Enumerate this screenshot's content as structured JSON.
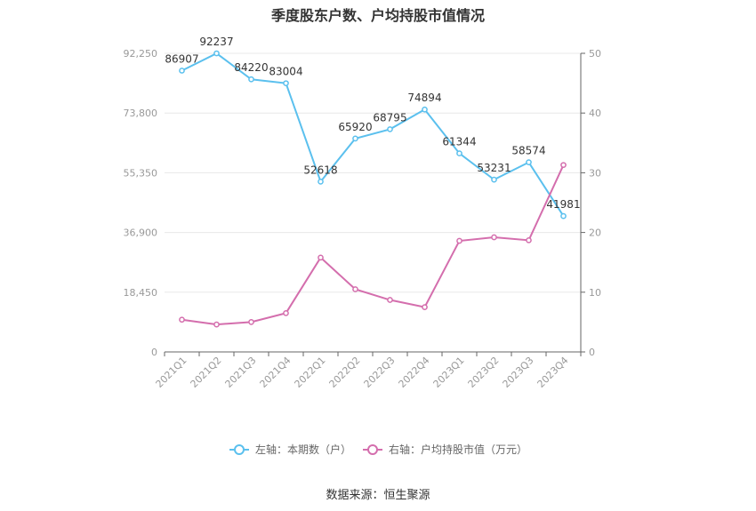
{
  "title": "季度股东户数、户均持股市值情况",
  "source": "数据来源：恒生聚源",
  "colors": {
    "left_series": "#5bc0ee",
    "right_series": "#d46ead",
    "grid": "#e8e8e8",
    "axis": "#666666",
    "tick_text": "#999999",
    "label_text": "#333333"
  },
  "chart_data": {
    "type": "line",
    "title": "季度股东户数、户均持股市值情况",
    "categories": [
      "2021Q1",
      "2021Q2",
      "2021Q3",
      "2021Q4",
      "2022Q1",
      "2022Q2",
      "2022Q3",
      "2022Q4",
      "2023Q1",
      "2023Q2",
      "2023Q3",
      "2023Q4"
    ],
    "left_axis": {
      "ticks": [
        "0",
        "18,450",
        "36,900",
        "55,350",
        "73,800",
        "92,250"
      ],
      "ylim": [
        0,
        92250
      ]
    },
    "right_axis": {
      "ticks": [
        "0",
        "10",
        "20",
        "30",
        "40",
        "50"
      ],
      "ylim": [
        0,
        50
      ]
    },
    "series": [
      {
        "name": "左轴：本期数（户）",
        "axis": "left",
        "values": [
          86907,
          92237,
          84220,
          83004,
          52618,
          65920,
          68795,
          74894,
          61344,
          53231,
          58574,
          41981
        ],
        "labels": [
          "86907",
          "92237",
          "84220",
          "83004",
          "52618",
          "65920",
          "68795",
          "74894",
          "61344",
          "53231",
          "58574",
          "41981"
        ]
      },
      {
        "name": "右轴：户均持股市值（万元）",
        "axis": "right",
        "values": [
          5.4,
          4.6,
          5.0,
          6.5,
          15.8,
          10.5,
          8.7,
          7.5,
          18.6,
          19.2,
          18.7,
          31.3
        ]
      }
    ],
    "grid": true,
    "legend_position": "bottom"
  }
}
